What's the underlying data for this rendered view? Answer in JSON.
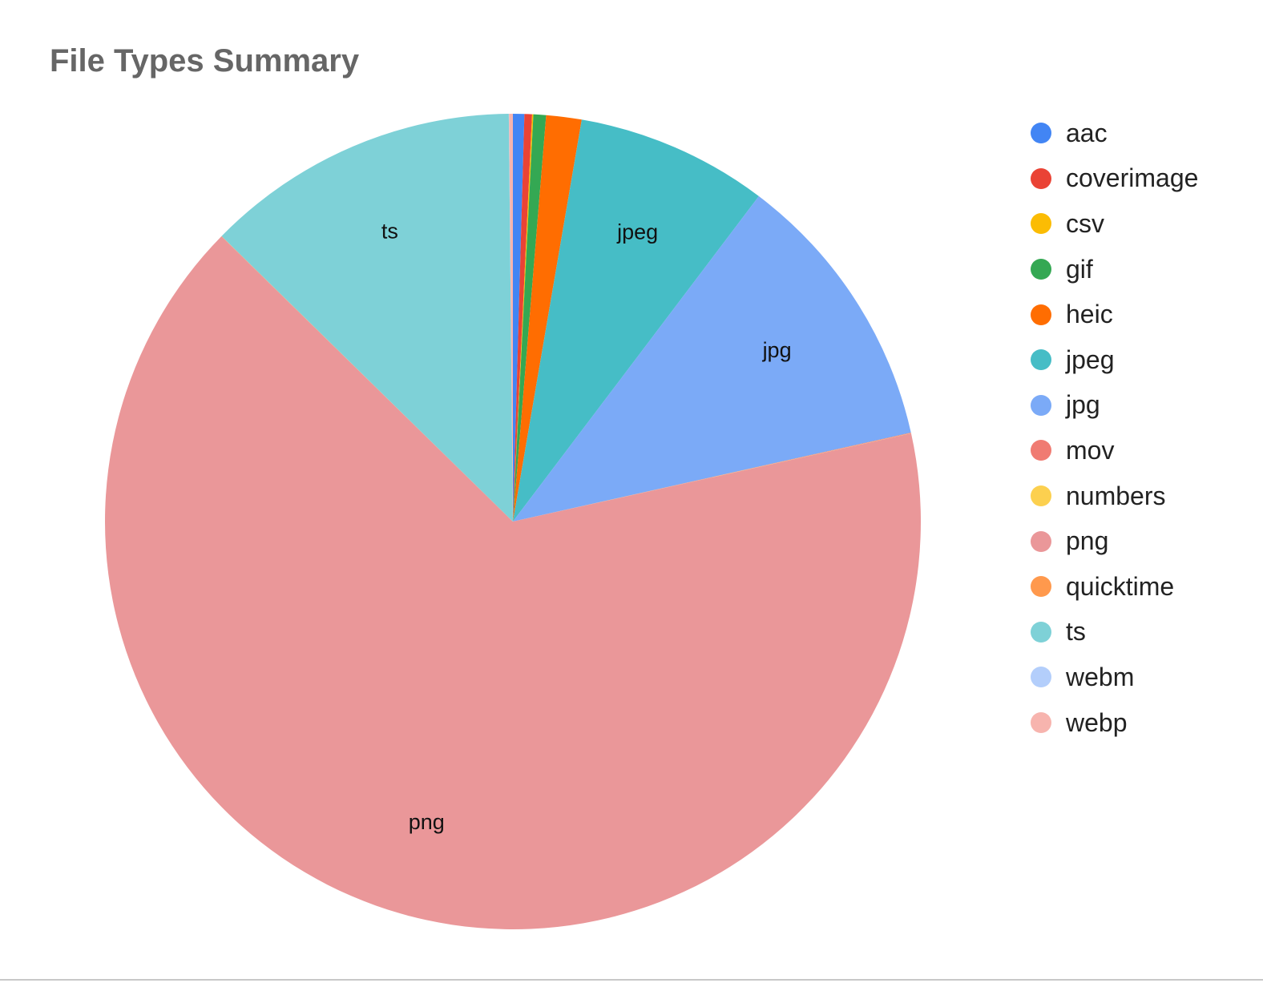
{
  "chart_data": {
    "type": "pie",
    "title": "File Types Summary",
    "legend_position": "right",
    "slices": [
      {
        "label": "aac",
        "value": 0.45,
        "color": "#4285F4",
        "show_label": false
      },
      {
        "label": "coverimage",
        "value": 0.3,
        "color": "#EA4335",
        "show_label": false
      },
      {
        "label": "csv",
        "value": 0.05,
        "color": "#FBBC04",
        "show_label": false
      },
      {
        "label": "gif",
        "value": 0.5,
        "color": "#34A853",
        "show_label": false
      },
      {
        "label": "heic",
        "value": 1.4,
        "color": "#FF6D01",
        "show_label": false
      },
      {
        "label": "jpeg",
        "value": 7.6,
        "color": "#46BDC6",
        "show_label": true
      },
      {
        "label": "jpg",
        "value": 11.2,
        "color": "#7BAAF7",
        "show_label": true
      },
      {
        "label": "mov",
        "value": 0.02,
        "color": "#F07B72",
        "show_label": false
      },
      {
        "label": "numbers",
        "value": 0.01,
        "color": "#FCD04F",
        "show_label": false
      },
      {
        "label": "png",
        "value": 65.8,
        "color": "#EA9799",
        "show_label": true
      },
      {
        "label": "quicktime",
        "value": 0.01,
        "color": "#FF994D",
        "show_label": false
      },
      {
        "label": "ts",
        "value": 12.5,
        "color": "#7ED1D7",
        "show_label": true
      },
      {
        "label": "webm",
        "value": 0.01,
        "color": "#B3CEFB",
        "show_label": false
      },
      {
        "label": "webp",
        "value": 0.15,
        "color": "#F7B4AE",
        "show_label": false
      }
    ]
  }
}
